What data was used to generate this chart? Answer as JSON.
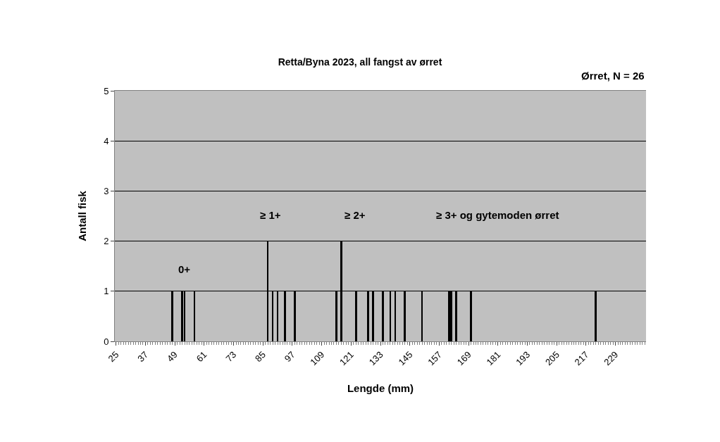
{
  "chart_data": {
    "type": "bar",
    "title": "Retta/Byna 2023, all fangst av ørret",
    "xlabel": "Lengde (mm)",
    "ylabel": "Antall fisk",
    "x": [
      48,
      52,
      53,
      57,
      87,
      89,
      91,
      94,
      98,
      115,
      117,
      123,
      128,
      130,
      134,
      137,
      139,
      143,
      150,
      161,
      162,
      164,
      170,
      221
    ],
    "values": [
      1,
      1,
      1,
      1,
      2,
      1,
      1,
      1,
      1,
      1,
      2,
      1,
      1,
      1,
      1,
      1,
      1,
      1,
      1,
      1,
      1,
      1,
      1,
      1
    ],
    "color": "#000000",
    "xlim": [
      24.5,
      241.5
    ],
    "xticks": [
      25,
      37,
      49,
      61,
      73,
      85,
      97,
      109,
      121,
      133,
      145,
      157,
      169,
      181,
      193,
      205,
      217,
      229
    ],
    "ylim": [
      0,
      5
    ],
    "yticks": [
      0,
      1,
      2,
      3,
      4,
      5
    ],
    "grid": "y",
    "annotations": [
      "Ørret, N = 26",
      "0+",
      "≥ 1+",
      "≥ 2+",
      "≥ 3+ og gytemoden ørret"
    ]
  }
}
